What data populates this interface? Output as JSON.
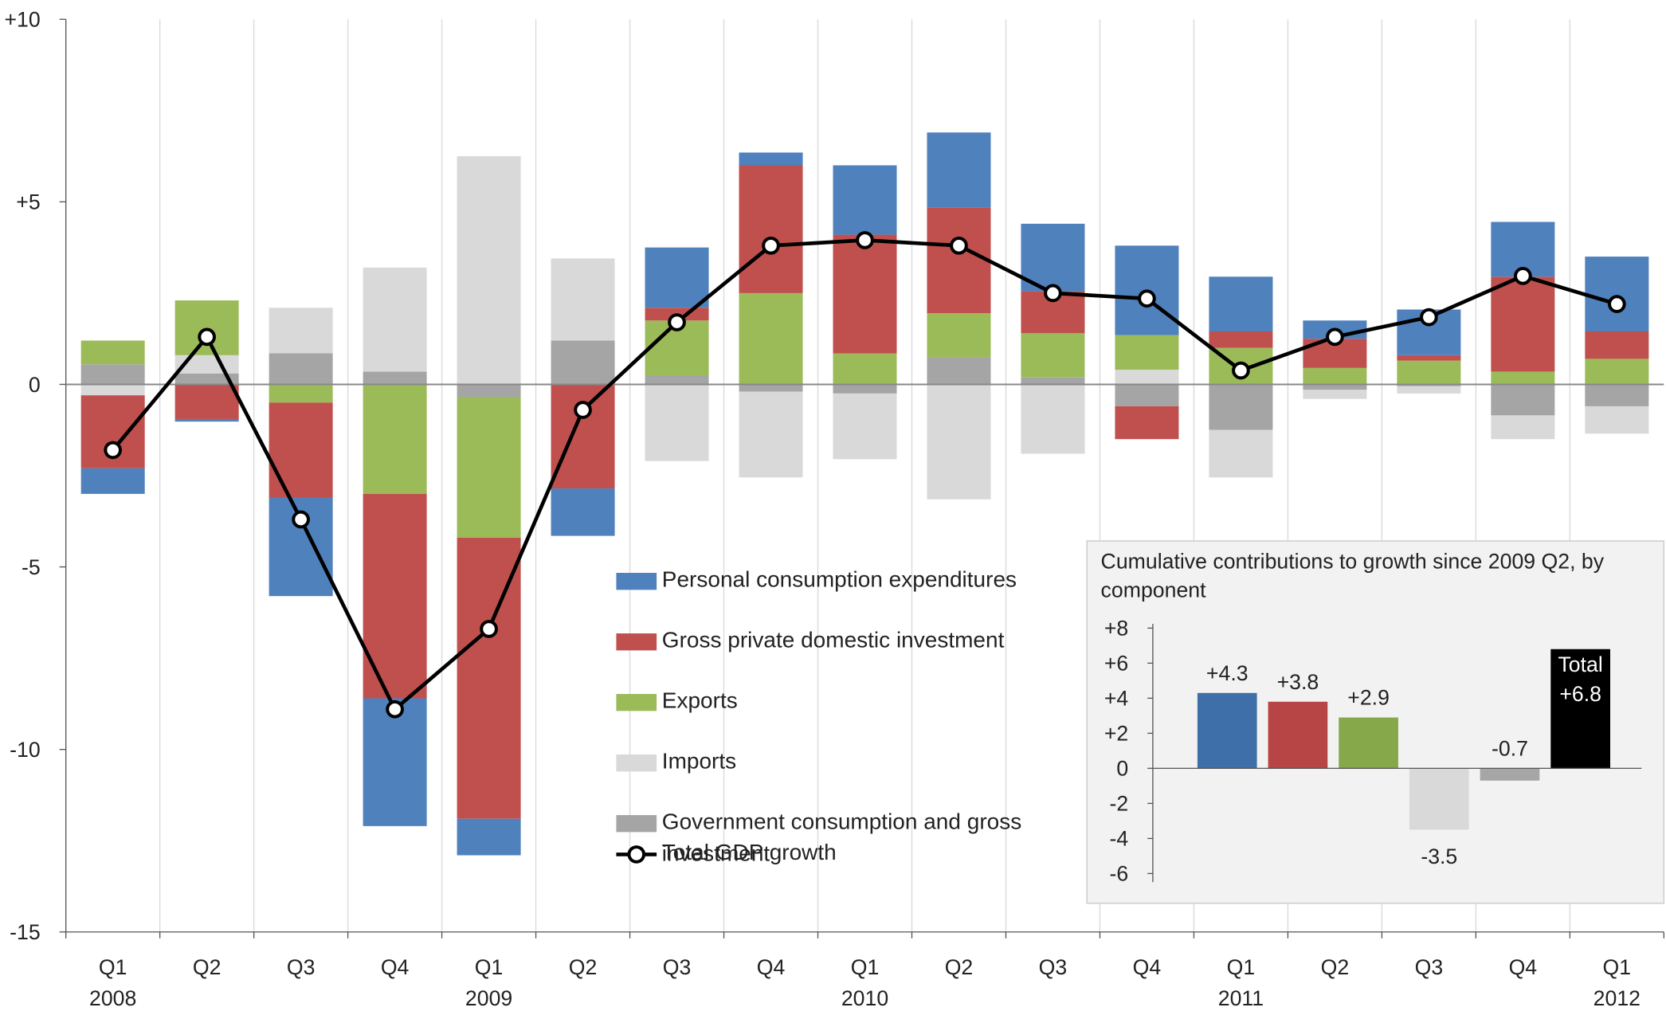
{
  "chart_data": [
    {
      "type": "bar",
      "stacked": true,
      "categories": [
        "Q1",
        "Q2",
        "Q3",
        "Q4",
        "Q1",
        "Q2",
        "Q3",
        "Q4",
        "Q1",
        "Q2",
        "Q3",
        "Q4",
        "Q1",
        "Q2",
        "Q3",
        "Q4",
        "Q1"
      ],
      "year_labels": [
        "2008",
        null,
        null,
        null,
        "2009",
        null,
        null,
        null,
        "2010",
        null,
        null,
        null,
        "2011",
        null,
        null,
        null,
        "2012"
      ],
      "series": [
        {
          "name": "Personal consumption expenditures",
          "color": "#4f81bd",
          "values": [
            -0.7,
            -0.07,
            -2.7,
            -3.5,
            -1.0,
            -1.3,
            1.65,
            0.35,
            1.9,
            2.05,
            1.85,
            2.45,
            1.5,
            0.5,
            1.25,
            1.5,
            2.05
          ]
        },
        {
          "name": "Gross private domestic investment",
          "color": "#c0504d",
          "values": [
            -2.0,
            -0.95,
            -2.6,
            -5.6,
            -7.7,
            -2.85,
            0.35,
            3.5,
            3.25,
            2.9,
            1.15,
            -0.9,
            0.45,
            0.8,
            0.15,
            2.6,
            0.75
          ]
        },
        {
          "name": "Exports",
          "color": "#9bbb59",
          "values": [
            0.65,
            1.5,
            -0.5,
            -3.0,
            -3.85,
            0,
            1.5,
            2.5,
            0.85,
            1.2,
            1.2,
            0.95,
            1.0,
            0.45,
            0.65,
            0.35,
            0.7
          ]
        },
        {
          "name": "Imports",
          "color": "#d9d9d9",
          "values": [
            -0.3,
            0.5,
            1.25,
            2.85,
            6.25,
            2.25,
            -2.1,
            -2.35,
            -1.8,
            -3.15,
            -1.9,
            0.4,
            -1.3,
            -0.25,
            -0.2,
            -0.65,
            -0.75
          ]
        },
        {
          "name": "Government consumption and gross investment",
          "color": "#a5a5a5",
          "values": [
            0.55,
            0.3,
            0.85,
            0.35,
            -0.35,
            1.2,
            0.25,
            -0.2,
            -0.25,
            0.75,
            0.2,
            -0.6,
            -1.25,
            -0.15,
            -0.05,
            -0.85,
            -0.6
          ]
        },
        {
          "name": "Total GDP growth",
          "type": "line",
          "color": "#000000",
          "values": [
            -1.8,
            1.3,
            -3.7,
            -8.9,
            -6.7,
            -0.7,
            1.7,
            3.8,
            3.95,
            3.8,
            2.5,
            2.35,
            0.38,
            1.3,
            1.84,
            2.97,
            2.2
          ]
        }
      ],
      "ylim": [
        -15,
        10
      ],
      "yticks": [
        {
          "value": 10,
          "label": "+10"
        },
        {
          "value": 5,
          "label": "+5"
        },
        0,
        -5,
        -10,
        -15
      ]
    },
    {
      "type": "bar",
      "title": "Cumulative contributions to growth since 2009 Q2, by component",
      "categories": [
        null,
        null,
        null,
        null,
        null,
        null
      ],
      "values": [
        4.3,
        3.8,
        2.9,
        -3.5,
        -0.7,
        6.8
      ],
      "value_labels": [
        "+4.3",
        "+3.8",
        "+2.9",
        "-3.5",
        "-0.7",
        "+6.8"
      ],
      "total_label": "Total",
      "colors": [
        "#3f6fa8",
        "#b84545",
        "#86a84a",
        "#d9d9d9",
        "#a6a6a6",
        "#000000"
      ],
      "ylim": [
        -6,
        8
      ],
      "yticks": [
        {
          "value": 8,
          "label": "+8"
        },
        {
          "value": 6,
          "label": "+6"
        },
        {
          "value": 4,
          "label": "+4"
        },
        {
          "value": 2,
          "label": "+2"
        },
        0,
        -2,
        -4,
        -6
      ]
    }
  ]
}
